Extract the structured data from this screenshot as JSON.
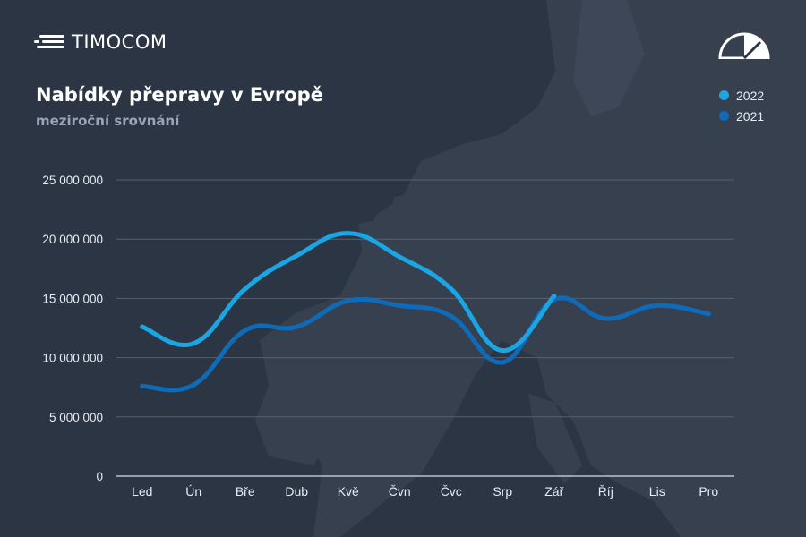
{
  "brand": {
    "name": "TIMOCOM"
  },
  "header": {
    "title": "Nabídky přepravy v Evropě",
    "subtitle": "meziroční srovnání"
  },
  "colors": {
    "background": "#2c3544",
    "map": "#37404f",
    "grid": "#566071",
    "axis": "#d8dde5",
    "series_2022": "#1aa6e4",
    "series_2021": "#0f6bb8"
  },
  "icons": {
    "gauge": "gauge-icon",
    "logo": "timocom-logo-icon"
  },
  "chart_data": {
    "type": "line",
    "categories": [
      "Led",
      "Ún",
      "Bře",
      "Dub",
      "Kvě",
      "Čvn",
      "Čvc",
      "Srp",
      "Zář",
      "Říj",
      "Lis",
      "Pro"
    ],
    "y_ticks": [
      "0",
      "5 000 000",
      "10 000 000",
      "15 000 000",
      "20 000 000",
      "25 000 000"
    ],
    "ylim": [
      0,
      25000000
    ],
    "grid": true,
    "legend_position": "top-right",
    "series": [
      {
        "name": "2022",
        "color": "#1aa6e4",
        "values": [
          12600000,
          11200000,
          15800000,
          18600000,
          20500000,
          18500000,
          15800000,
          10600000,
          15200000,
          null,
          null,
          null
        ]
      },
      {
        "name": "2021",
        "color": "#0f6bb8",
        "values": [
          7600000,
          7700000,
          12300000,
          12600000,
          14800000,
          14400000,
          13500000,
          9600000,
          14900000,
          13300000,
          14400000,
          13700000
        ]
      }
    ]
  }
}
